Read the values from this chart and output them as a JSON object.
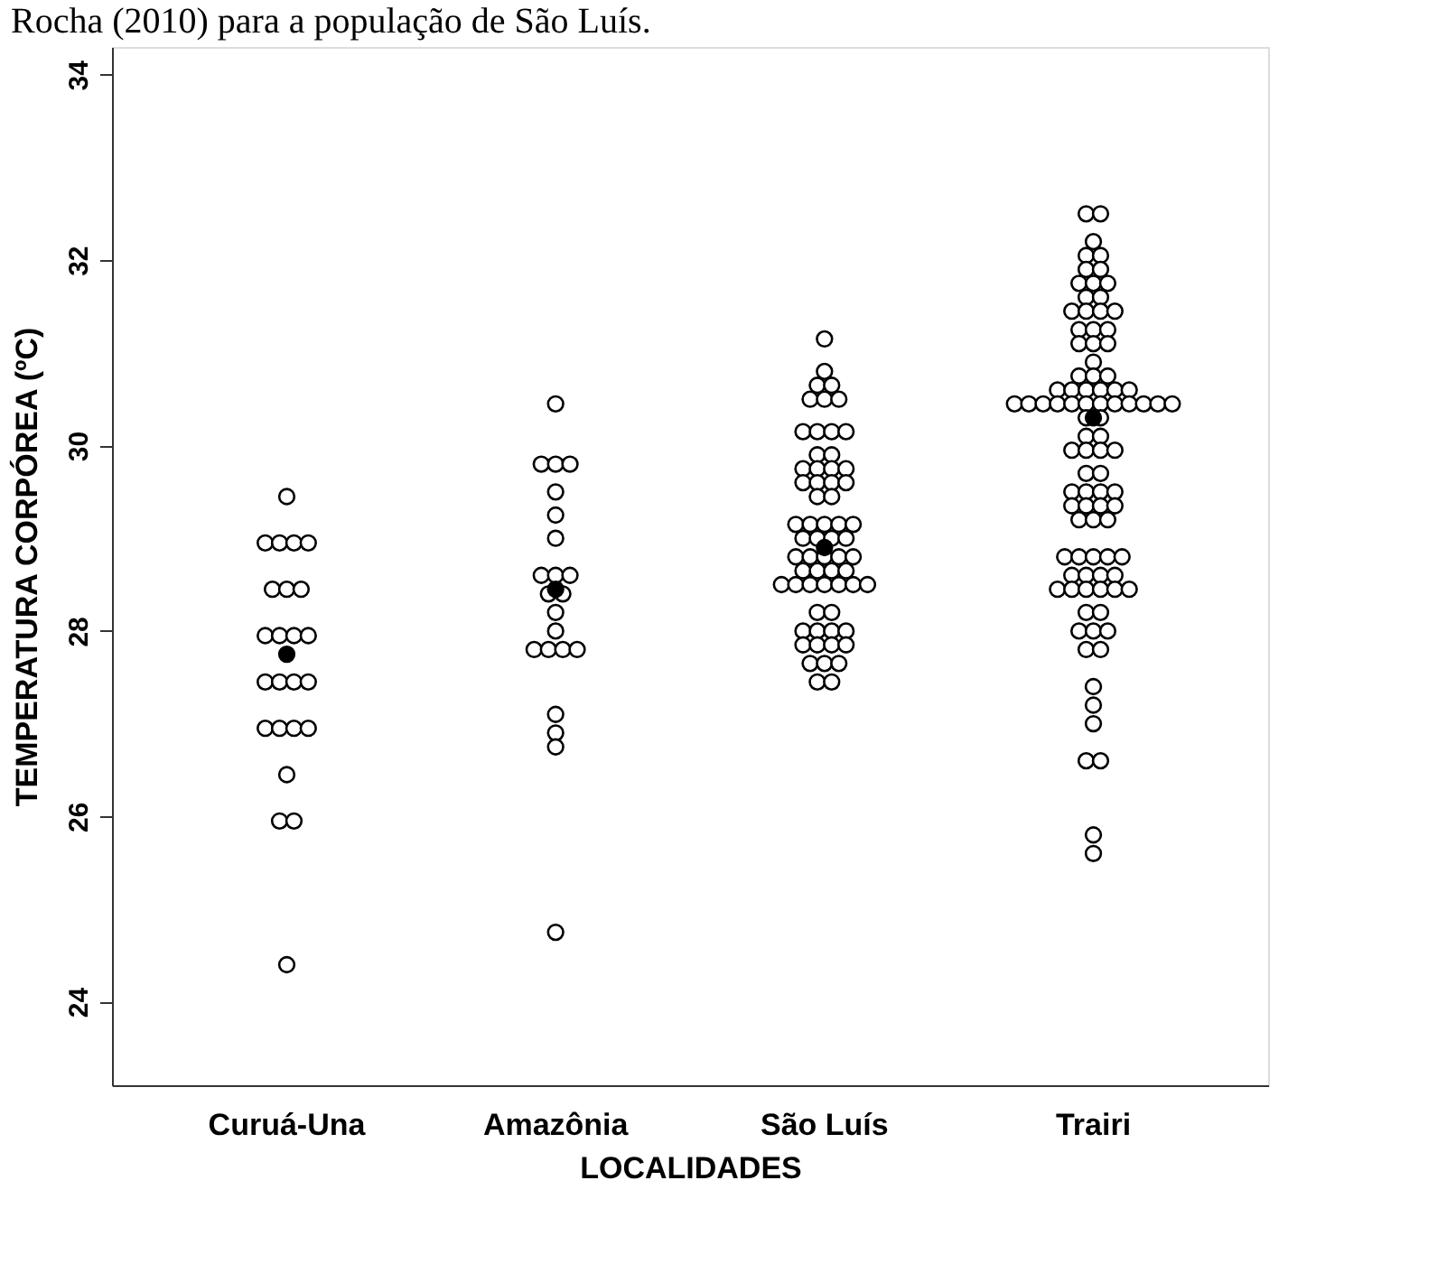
{
  "chart_data": {
    "type": "scatter",
    "annotations": [
      "Rocha (2010) para a população de São Luís."
    ],
    "xlabel": "LOCALIDADES",
    "ylabel": "TEMPERATURA CORPÓREA (ºC)",
    "categories": [
      "Curuá-Una",
      "Amazônia",
      "São Luís",
      "Trairi"
    ],
    "ylim": [
      23.1,
      34.3
    ],
    "yticks": [
      24,
      26,
      28,
      30,
      32,
      34
    ],
    "grid": false,
    "marker": "circle",
    "series": [
      {
        "color": "#ffffff",
        "x": [
          "Curuá-Una",
          "Curuá-Una",
          "Curuá-Una",
          "Curuá-Una",
          "Curuá-Una",
          "Curuá-Una",
          "Curuá-Una",
          "Curuá-Una",
          "Curuá-Una",
          "Curuá-Una",
          "Curuá-Una",
          "Curuá-Una",
          "Curuá-Una",
          "Curuá-Una",
          "Curuá-Una",
          "Curuá-Una",
          "Curuá-Una",
          "Curuá-Una",
          "Curuá-Una",
          "Curuá-Una",
          "Curuá-Una",
          "Curuá-Una",
          "Curuá-Una",
          "Curuá-Una"
        ],
        "values": [
          29.45,
          28.95,
          28.95,
          28.95,
          28.95,
          28.45,
          28.45,
          28.45,
          27.95,
          27.95,
          27.95,
          27.95,
          27.45,
          27.45,
          27.45,
          27.45,
          26.95,
          26.95,
          26.95,
          26.95,
          26.45,
          25.95,
          25.95,
          24.4
        ]
      },
      {
        "color": "#ffffff",
        "x": [
          "Amazônia",
          "Amazônia",
          "Amazônia",
          "Amazônia",
          "Amazônia",
          "Amazônia",
          "Amazônia",
          "Amazônia",
          "Amazônia",
          "Amazônia",
          "Amazônia",
          "Amazônia",
          "Amazônia",
          "Amazônia",
          "Amazônia",
          "Amazônia",
          "Amazônia",
          "Amazônia",
          "Amazônia",
          "Amazônia",
          "Amazônia",
          "Amazônia"
        ],
        "values": [
          30.45,
          29.8,
          29.8,
          29.8,
          29.5,
          29.25,
          29.0,
          28.6,
          28.6,
          28.6,
          28.4,
          28.4,
          28.2,
          28.0,
          27.8,
          27.8,
          27.8,
          27.8,
          27.1,
          26.9,
          26.75,
          24.75
        ]
      },
      {
        "color": "#ffffff",
        "x": [
          "São Luís",
          "São Luís",
          "São Luís",
          "São Luís",
          "São Luís",
          "São Luís",
          "São Luís",
          "São Luís",
          "São Luís",
          "São Luís",
          "São Luís",
          "São Luís",
          "São Luís",
          "São Luís",
          "São Luís",
          "São Luís",
          "São Luís",
          "São Luís",
          "São Luís",
          "São Luís",
          "São Luís",
          "São Luís",
          "São Luís",
          "São Luís",
          "São Luís",
          "São Luís",
          "São Luís",
          "São Luís",
          "São Luís",
          "São Luís",
          "São Luís",
          "São Luís",
          "São Luís",
          "São Luís",
          "São Luís",
          "São Luís",
          "São Luís",
          "São Luís",
          "São Luís",
          "São Luís",
          "São Luís",
          "São Luís",
          "São Luís",
          "São Luís",
          "São Luís",
          "São Luís",
          "São Luís",
          "São Luís",
          "São Luís",
          "São Luís",
          "São Luís",
          "São Luís",
          "São Luís",
          "São Luís",
          "São Luís",
          "São Luís",
          "São Luís",
          "São Luís",
          "São Luís",
          "São Luís",
          "São Luís",
          "São Luís",
          "São Luís"
        ],
        "values": [
          31.15,
          30.8,
          30.65,
          30.65,
          30.5,
          30.5,
          30.5,
          30.15,
          30.15,
          30.15,
          30.15,
          29.9,
          29.9,
          29.75,
          29.75,
          29.75,
          29.75,
          29.6,
          29.6,
          29.6,
          29.6,
          29.45,
          29.45,
          29.15,
          29.15,
          29.15,
          29.15,
          29.15,
          29.0,
          29.0,
          29.0,
          29.0,
          28.8,
          28.8,
          28.8,
          28.8,
          28.8,
          28.65,
          28.65,
          28.65,
          28.65,
          28.5,
          28.5,
          28.5,
          28.5,
          28.5,
          28.5,
          28.5,
          28.2,
          28.2,
          28.0,
          28.0,
          28.0,
          28.0,
          27.85,
          27.85,
          27.85,
          27.85,
          27.65,
          27.65,
          27.65,
          27.45,
          27.45
        ]
      },
      {
        "color": "#ffffff",
        "x": [
          "Trairi",
          "Trairi",
          "Trairi",
          "Trairi",
          "Trairi",
          "Trairi",
          "Trairi",
          "Trairi",
          "Trairi",
          "Trairi",
          "Trairi",
          "Trairi",
          "Trairi",
          "Trairi",
          "Trairi",
          "Trairi",
          "Trairi",
          "Trairi",
          "Trairi",
          "Trairi",
          "Trairi",
          "Trairi",
          "Trairi",
          "Trairi",
          "Trairi",
          "Trairi",
          "Trairi",
          "Trairi",
          "Trairi",
          "Trairi",
          "Trairi",
          "Trairi",
          "Trairi",
          "Trairi",
          "Trairi",
          "Trairi",
          "Trairi",
          "Trairi",
          "Trairi",
          "Trairi",
          "Trairi",
          "Trairi",
          "Trairi",
          "Trairi",
          "Trairi",
          "Trairi",
          "Trairi",
          "Trairi",
          "Trairi",
          "Trairi",
          "Trairi",
          "Trairi",
          "Trairi",
          "Trairi",
          "Trairi",
          "Trairi",
          "Trairi",
          "Trairi",
          "Trairi",
          "Trairi",
          "Trairi",
          "Trairi",
          "Trairi",
          "Trairi",
          "Trairi",
          "Trairi",
          "Trairi",
          "Trairi",
          "Trairi",
          "Trairi",
          "Trairi",
          "Trairi",
          "Trairi",
          "Trairi",
          "Trairi",
          "Trairi",
          "Trairi",
          "Trairi",
          "Trairi",
          "Trairi",
          "Trairi",
          "Trairi",
          "Trairi",
          "Trairi",
          "Trairi",
          "Trairi",
          "Trairi",
          "Trairi",
          "Trairi",
          "Trairi",
          "Trairi",
          "Trairi",
          "Trairi",
          "Trairi"
        ],
        "values": [
          32.5,
          32.5,
          32.2,
          32.05,
          32.05,
          31.9,
          31.9,
          31.75,
          31.75,
          31.75,
          31.6,
          31.6,
          31.45,
          31.45,
          31.45,
          31.45,
          31.25,
          31.25,
          31.25,
          31.1,
          31.1,
          31.1,
          30.9,
          30.75,
          30.75,
          30.75,
          30.6,
          30.6,
          30.6,
          30.6,
          30.6,
          30.6,
          30.45,
          30.45,
          30.45,
          30.45,
          30.45,
          30.45,
          30.45,
          30.45,
          30.45,
          30.45,
          30.45,
          30.45,
          30.3,
          30.3,
          30.1,
          30.1,
          29.95,
          29.95,
          29.95,
          29.95,
          29.7,
          29.7,
          29.5,
          29.5,
          29.5,
          29.5,
          29.35,
          29.35,
          29.35,
          29.35,
          29.2,
          29.2,
          29.2,
          28.8,
          28.8,
          28.8,
          28.8,
          28.8,
          28.6,
          28.6,
          28.6,
          28.6,
          28.45,
          28.45,
          28.45,
          28.45,
          28.45,
          28.45,
          28.2,
          28.2,
          28.0,
          28.0,
          28.0,
          27.8,
          27.8,
          27.4,
          27.2,
          27.0,
          26.6,
          26.6,
          25.8,
          25.6
        ]
      },
      {
        "color": "#000000",
        "x": [
          "Curuá-Una",
          "Amazônia",
          "São Luís",
          "Trairi"
        ],
        "values": [
          27.75,
          28.45,
          28.9,
          30.3
        ]
      }
    ]
  }
}
